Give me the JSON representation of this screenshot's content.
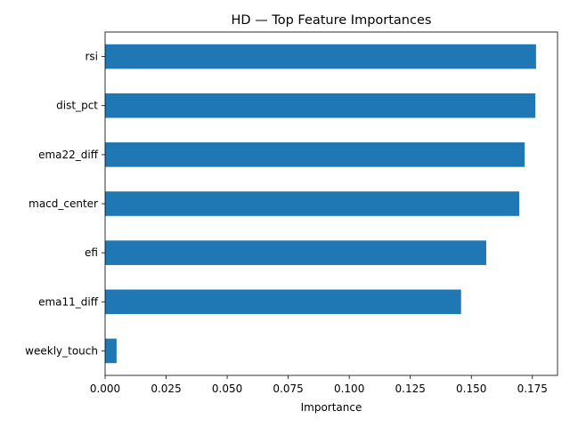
{
  "chart_data": {
    "type": "bar",
    "orientation": "horizontal",
    "title": "HD — Top Feature Importances",
    "xlabel": "Importance",
    "ylabel": "",
    "categories": [
      "rsi",
      "dist_pct",
      "ema22_diff",
      "macd_center",
      "efi",
      "ema11_diff",
      "weekly_touch"
    ],
    "values": [
      0.1765,
      0.1762,
      0.1718,
      0.1696,
      0.1561,
      0.1458,
      0.0047
    ],
    "xlim": [
      0,
      0.1853
    ],
    "xticks": [
      0.0,
      0.025,
      0.05,
      0.075,
      0.1,
      0.125,
      0.15,
      0.175
    ],
    "xtick_labels": [
      "0.000",
      "0.025",
      "0.050",
      "0.075",
      "0.100",
      "0.125",
      "0.150",
      "0.175"
    ],
    "grid": false,
    "legend": "none",
    "bar_color": "#1f77b4"
  }
}
